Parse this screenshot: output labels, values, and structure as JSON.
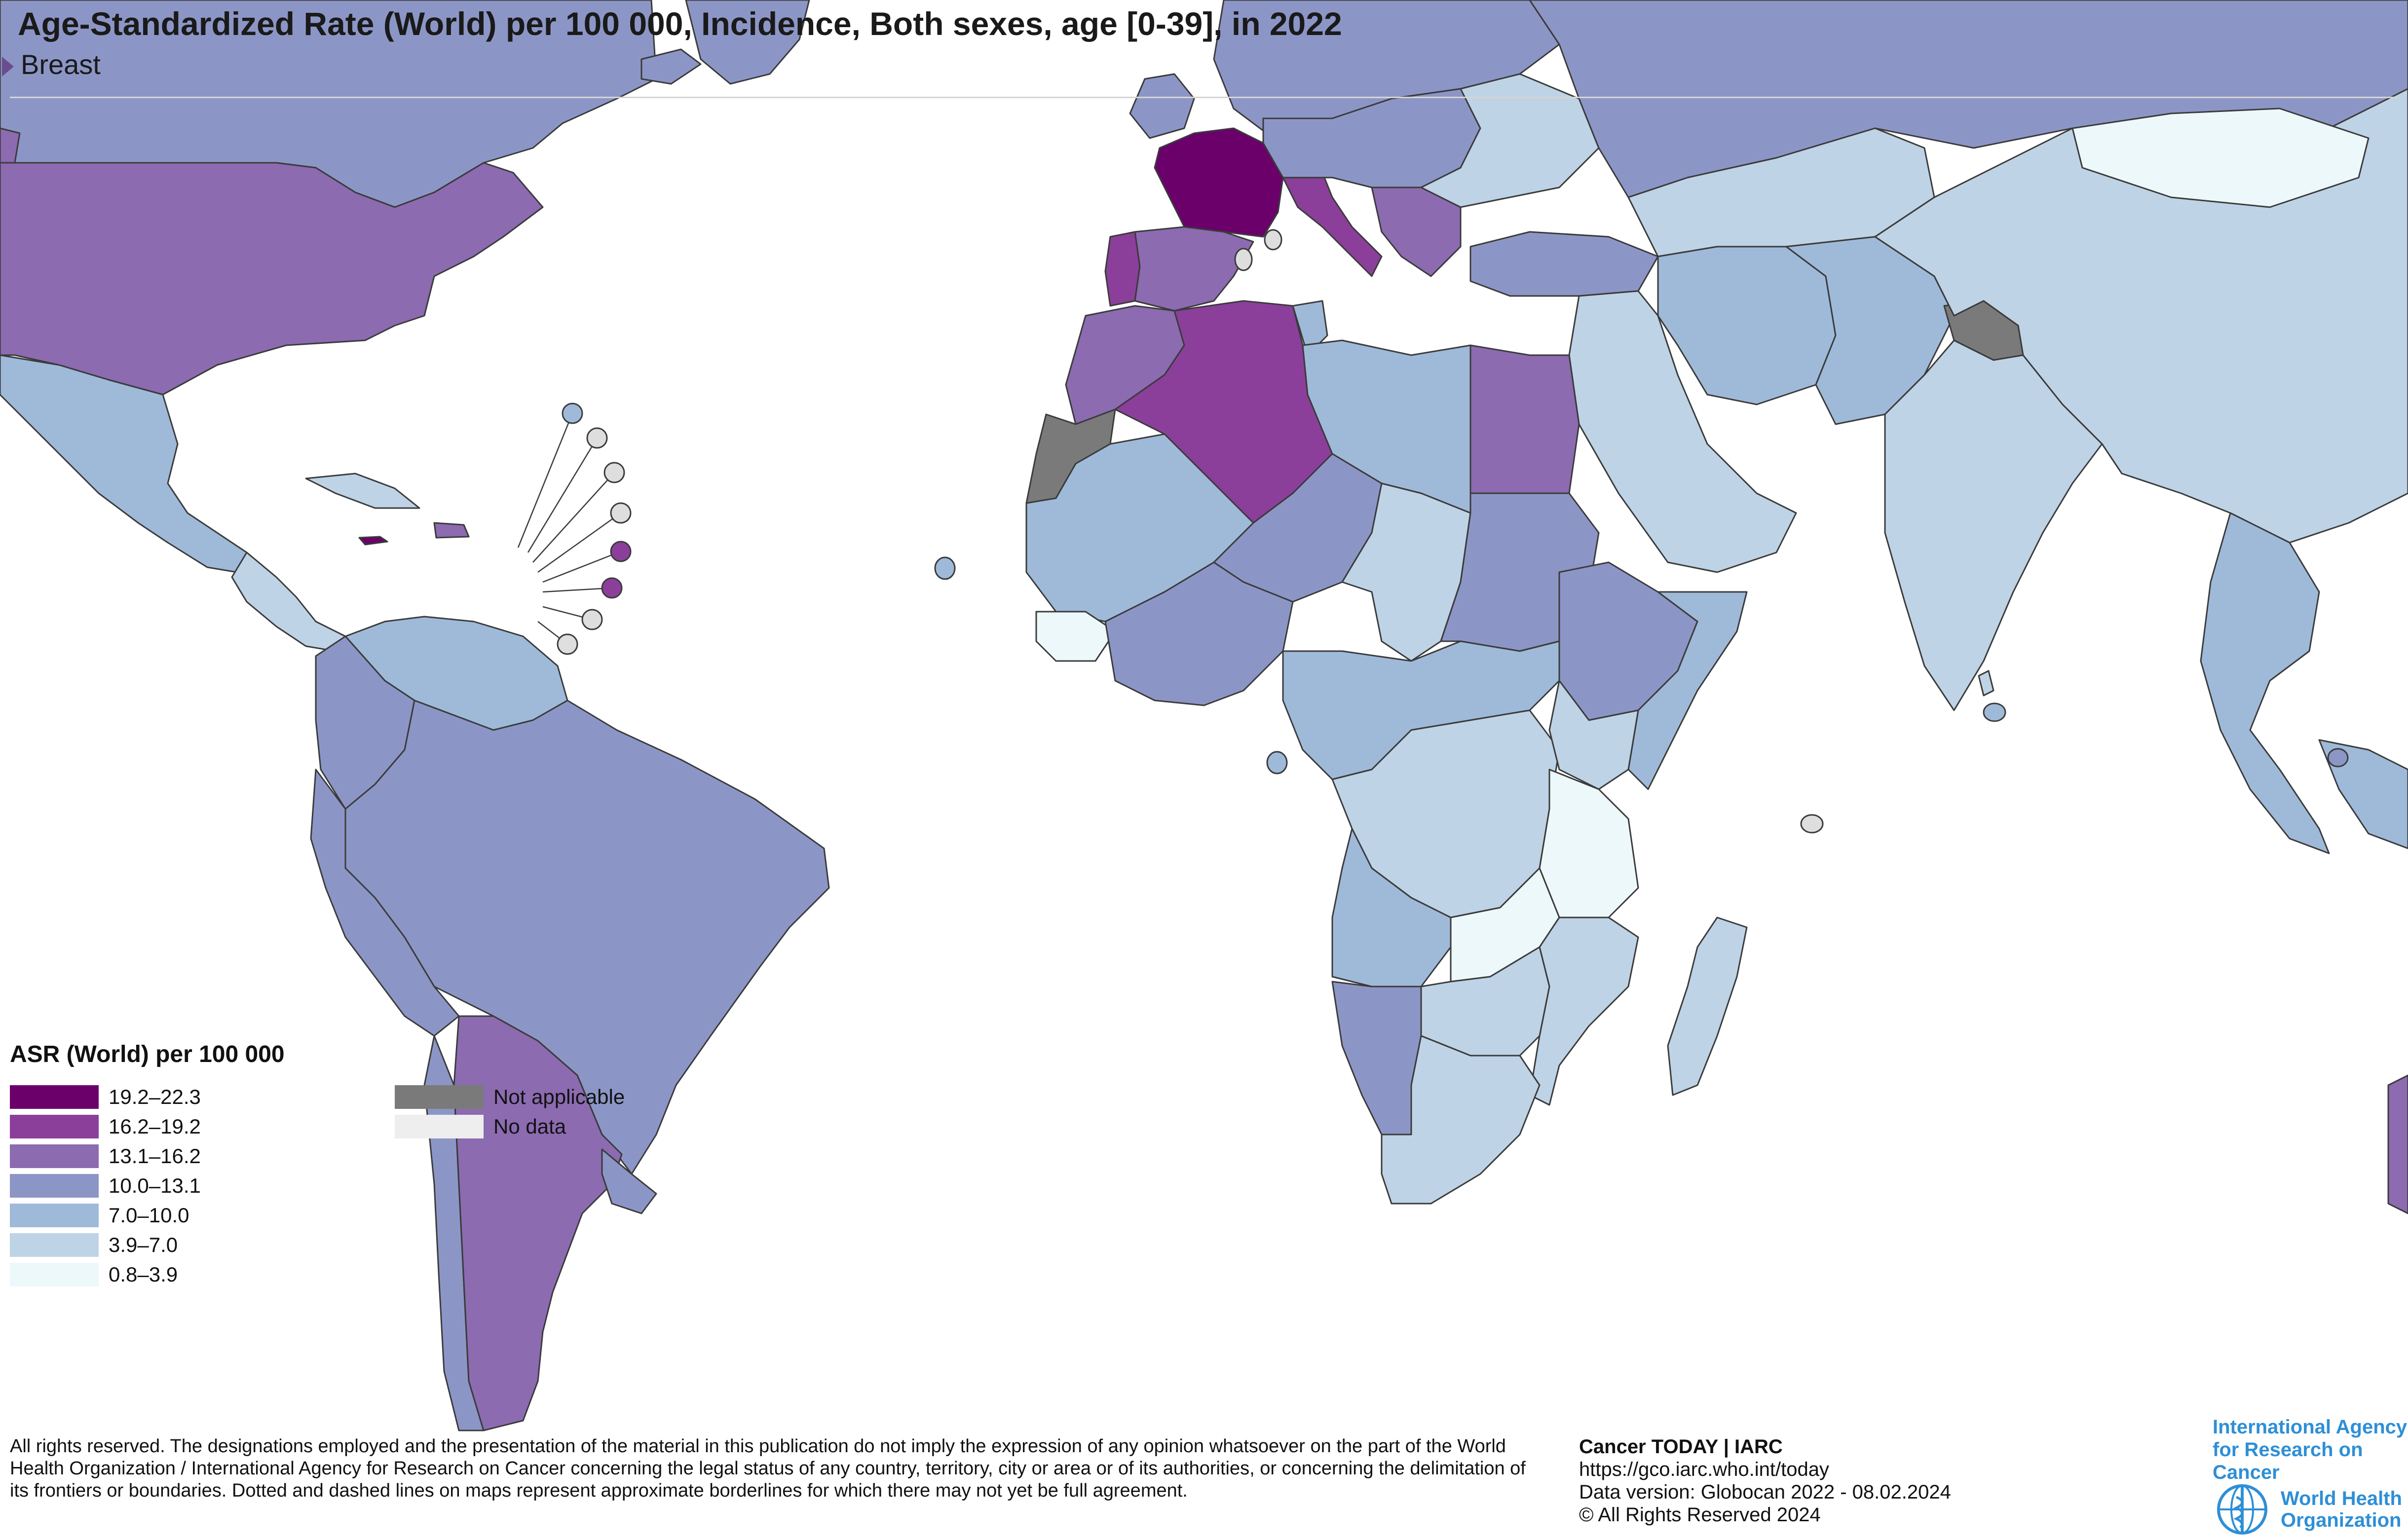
{
  "header": {
    "title": "Age-Standardized Rate (World) per 100 000, Incidence, Both sexes, age [0-39], in 2022",
    "subtitle": "Breast"
  },
  "legend": {
    "title": "ASR (World) per 100 000",
    "classes": [
      {
        "label": "19.2–22.3",
        "color": "#6b006b"
      },
      {
        "label": "16.2–19.2",
        "color": "#8b3f9b"
      },
      {
        "label": "13.1–16.2",
        "color": "#8c6bb1"
      },
      {
        "label": "10.0–13.1",
        "color": "#8c96c6"
      },
      {
        "label": "7.0–10.0",
        "color": "#9fbad9"
      },
      {
        "label": "3.9–7.0",
        "color": "#bfd3e6"
      },
      {
        "label": "0.8–3.9",
        "color": "#edf8fb"
      }
    ],
    "special": [
      {
        "label": "Not applicable",
        "color": "#7a7a7a"
      },
      {
        "label": "No data",
        "color": "#eeeeee"
      }
    ]
  },
  "footer": {
    "disclaimer": "All rights reserved. The designations employed and the presentation of the material in this publication do not imply the expression of any opinion whatsoever on the part of the World Health Organization / International Agency for Research on Cancer concerning the legal status of any country, territory, city or area or of its authorities, or concerning the delimitation of its frontiers or boundaries. Dotted and dashed lines on maps represent approximate borderlines for which there may not yet be full agreement.",
    "credit_title": "Cancer TODAY | IARC",
    "credit_url": "https://gco.iarc.who.int/today",
    "credit_version": "Data version: Globocan 2022 - 08.02.2024",
    "credit_rights": "© All Rights Reserved 2024"
  },
  "logos": {
    "iarc_line1": "International Agency",
    "iarc_line2": "for Research on Cancer",
    "who_line1": "World Health",
    "who_line2": "Organization"
  },
  "regions": [
    {
      "name": "Canada / Greenland",
      "class": "10.0–13.1"
    },
    {
      "name": "United States",
      "class": "13.1–16.2"
    },
    {
      "name": "Mexico",
      "class": "7.0–10.0"
    },
    {
      "name": "Central America",
      "class": "3.9–7.0"
    },
    {
      "name": "Cuba",
      "class": "3.9–7.0"
    },
    {
      "name": "Jamaica",
      "class": "19.2–22.3"
    },
    {
      "name": "Dominican Republic",
      "class": "13.1–16.2"
    },
    {
      "name": "Colombia",
      "class": "10.0–13.1"
    },
    {
      "name": "Venezuela",
      "class": "7.0–10.0"
    },
    {
      "name": "Brazil / South America",
      "class": "10.0–13.1"
    },
    {
      "name": "Argentina",
      "class": "13.1–16.2"
    },
    {
      "name": "Uruguay",
      "class": "10.0–13.1"
    },
    {
      "name": "France",
      "class": "19.2–22.3"
    },
    {
      "name": "Portugal",
      "class": "16.2–19.2"
    },
    {
      "name": "Spain",
      "class": "13.1–16.2"
    },
    {
      "name": "Italy",
      "class": "16.2–19.2"
    },
    {
      "name": "United Kingdom / Ireland",
      "class": "10.0–13.1"
    },
    {
      "name": "Northern Europe",
      "class": "10.0–13.1"
    },
    {
      "name": "Eastern Europe",
      "class": "3.9–7.0"
    },
    {
      "name": "Russia",
      "class": "10.0–13.1"
    },
    {
      "name": "Turkey",
      "class": "10.0–13.1"
    },
    {
      "name": "Middle East",
      "class": "3.9–7.0"
    },
    {
      "name": "Iran",
      "class": "7.0–10.0"
    },
    {
      "name": "Afghanistan / Pakistan",
      "class": "7.0–10.0"
    },
    {
      "name": "India",
      "class": "3.9–7.0"
    },
    {
      "name": "China / Mongolia",
      "class": "3.9–7.0"
    },
    {
      "name": "Mongolia (north)",
      "class": "0.8–3.9"
    },
    {
      "name": "Kashmir",
      "class": "Not applicable"
    },
    {
      "name": "Western Sahara",
      "class": "Not applicable"
    },
    {
      "name": "Southeast Asia",
      "class": "7.0–10.0"
    },
    {
      "name": "Morocco",
      "class": "13.1–16.2"
    },
    {
      "name": "Algeria",
      "class": "16.2–19.2"
    },
    {
      "name": "Tunisia",
      "class": "7.0–10.0"
    },
    {
      "name": "Libya",
      "class": "7.0–10.0"
    },
    {
      "name": "Egypt",
      "class": "13.1–16.2"
    },
    {
      "name": "West Africa",
      "class": "7.0–10.0"
    },
    {
      "name": "Niger",
      "class": "10.0–13.1"
    },
    {
      "name": "Chad",
      "class": "3.9–7.0"
    },
    {
      "name": "Sudan",
      "class": "10.0–13.1"
    },
    {
      "name": "Ethiopia",
      "class": "10.0–13.1"
    },
    {
      "name": "Somalia",
      "class": "7.0–10.0"
    },
    {
      "name": "Central Africa",
      "class": "7.0–10.0"
    },
    {
      "name": "DR Congo",
      "class": "3.9–7.0"
    },
    {
      "name": "Tanzania",
      "class": "0.8–3.9"
    },
    {
      "name": "Zambia",
      "class": "0.8–3.9"
    },
    {
      "name": "Angola",
      "class": "7.0–10.0"
    },
    {
      "name": "Namibia",
      "class": "10.0–13.1"
    },
    {
      "name": "South Africa",
      "class": "3.9–7.0"
    },
    {
      "name": "Mozambique",
      "class": "3.9–7.0"
    },
    {
      "name": "Madagascar",
      "class": "3.9–7.0"
    }
  ]
}
